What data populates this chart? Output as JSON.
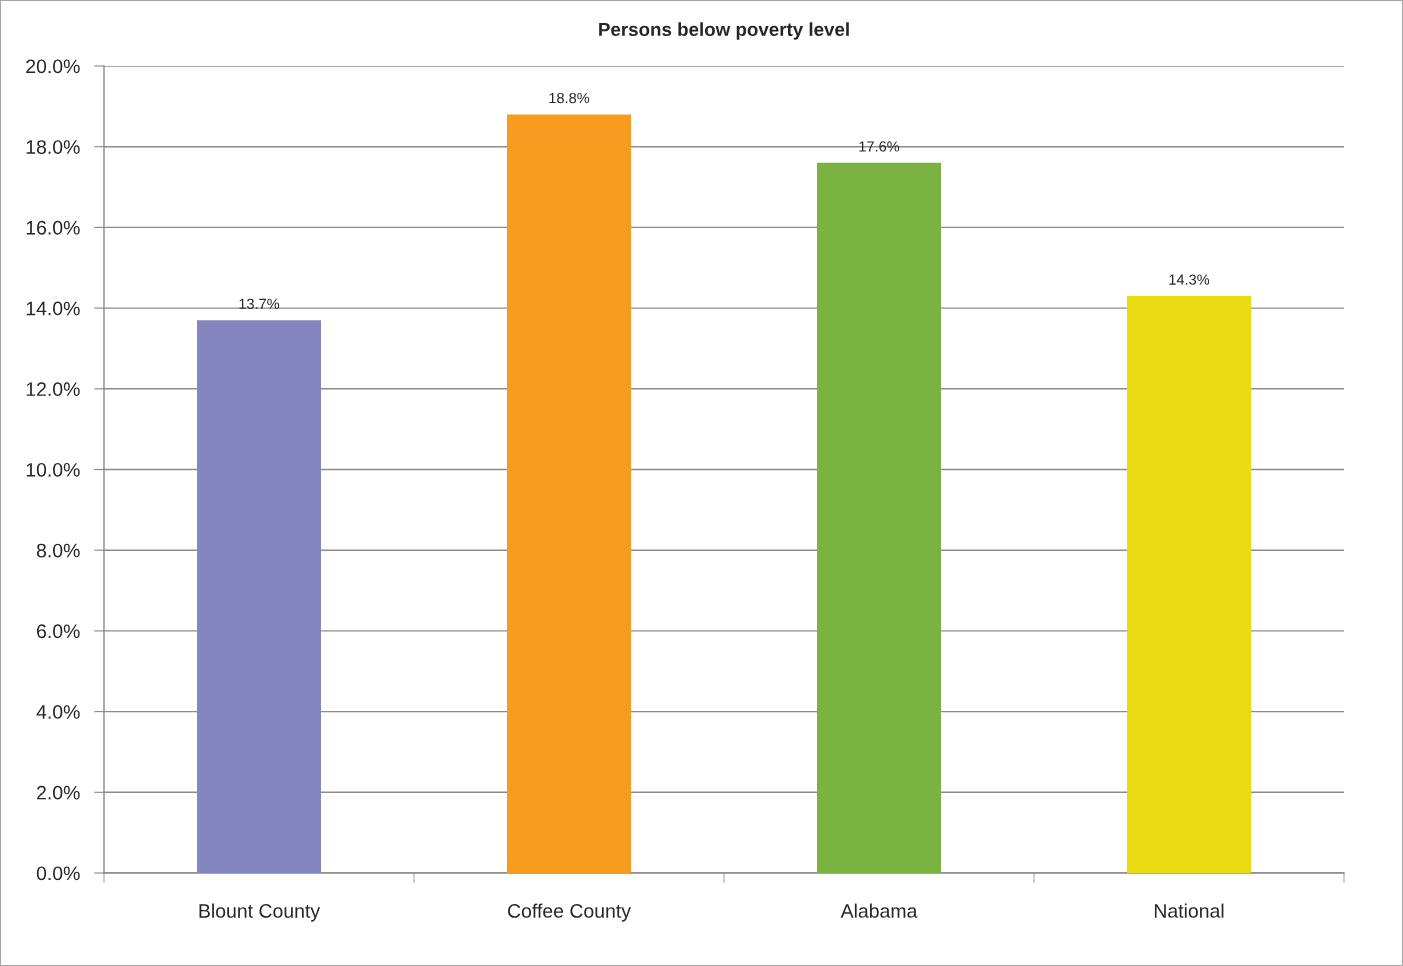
{
  "chart_data": {
    "type": "bar",
    "title": "Persons below poverty level",
    "categories": [
      "Blount County",
      "Coffee County",
      "Alabama",
      "National"
    ],
    "values": [
      13.7,
      18.8,
      17.6,
      14.3
    ],
    "colors": [
      "#8585bf",
      "#f79c1f",
      "#7bb342",
      "#ebdb12"
    ],
    "value_labels": [
      "13.7%",
      "18.8%",
      "17.6%",
      "14.3%"
    ],
    "ylim": [
      0,
      20
    ],
    "yticks": [
      {
        "value": 0,
        "label": "0.0%"
      },
      {
        "value": 2,
        "label": "2.0%"
      },
      {
        "value": 4,
        "label": "4.0%"
      },
      {
        "value": 6,
        "label": "6.0%"
      },
      {
        "value": 8,
        "label": "8.0%"
      },
      {
        "value": 10,
        "label": "10.0%"
      },
      {
        "value": 12,
        "label": "12.0%"
      },
      {
        "value": 14,
        "label": "14.0%"
      },
      {
        "value": 16,
        "label": "16.0%"
      },
      {
        "value": 18,
        "label": "18.0%"
      },
      {
        "value": 20,
        "label": "20.0%"
      }
    ],
    "grid": "y",
    "legend": false
  }
}
